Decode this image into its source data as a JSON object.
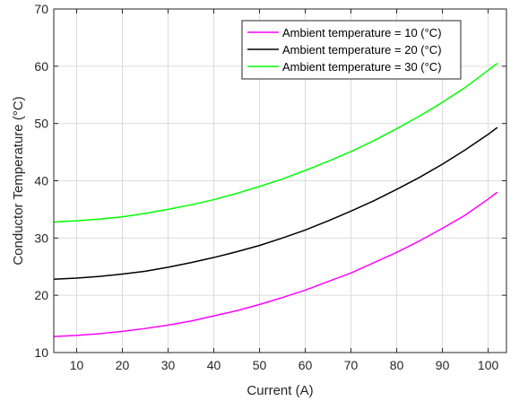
{
  "chart_data": {
    "type": "line",
    "title": "",
    "xlabel": "Current (A)",
    "ylabel": "Conductor Temperature (°C)",
    "xlim": [
      5,
      104
    ],
    "ylim": [
      10,
      70
    ],
    "xticks": [
      10,
      20,
      30,
      40,
      50,
      60,
      70,
      80,
      90,
      100
    ],
    "yticks": [
      10,
      20,
      30,
      40,
      50,
      60,
      70
    ],
    "grid": true,
    "legend_position": "top-right",
    "series": [
      {
        "name": "Ambient temperature = 10 (°C)",
        "color": "#ff00ff",
        "x": [
          5,
          10,
          15,
          20,
          25,
          30,
          35,
          40,
          45,
          50,
          55,
          60,
          65,
          70,
          75,
          80,
          85,
          90,
          95,
          100,
          102
        ],
        "y": [
          12.8,
          13.0,
          13.3,
          13.7,
          14.2,
          14.8,
          15.5,
          16.4,
          17.3,
          18.4,
          19.6,
          20.9,
          22.4,
          23.9,
          25.7,
          27.5,
          29.5,
          31.7,
          34.0,
          36.8,
          38.0
        ]
      },
      {
        "name": "Ambient temperature = 20 (°C)",
        "color": "#000000",
        "x": [
          5,
          10,
          15,
          20,
          25,
          30,
          35,
          40,
          45,
          50,
          55,
          60,
          65,
          70,
          75,
          80,
          85,
          90,
          95,
          100,
          102
        ],
        "y": [
          22.8,
          23.0,
          23.3,
          23.7,
          24.2,
          24.9,
          25.7,
          26.6,
          27.6,
          28.7,
          30.0,
          31.4,
          33.0,
          34.7,
          36.5,
          38.5,
          40.6,
          42.9,
          45.4,
          48.1,
          49.3
        ]
      },
      {
        "name": "Ambient temperature = 30 (°C)",
        "color": "#00ff00",
        "x": [
          5,
          10,
          15,
          20,
          25,
          30,
          35,
          40,
          45,
          50,
          55,
          60,
          65,
          70,
          75,
          80,
          85,
          90,
          95,
          100,
          102
        ],
        "y": [
          32.8,
          33.0,
          33.3,
          33.7,
          34.3,
          35.0,
          35.8,
          36.7,
          37.8,
          39.0,
          40.3,
          41.8,
          43.4,
          45.1,
          47.0,
          49.1,
          51.3,
          53.7,
          56.3,
          59.3,
          60.5
        ]
      }
    ]
  }
}
